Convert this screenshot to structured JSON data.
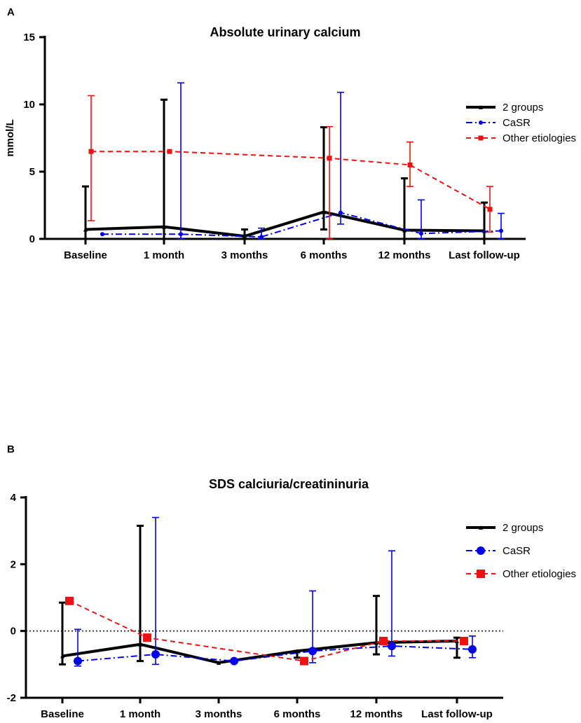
{
  "chart_data": [
    {
      "type": "line",
      "panel": "A",
      "title": "Absolute urinary calcium",
      "xlabel": "",
      "ylabel": "mmol/L",
      "ylim": [
        0,
        15
      ],
      "yticks": [
        0,
        5,
        10,
        15
      ],
      "categories": [
        "Baseline",
        "1 month",
        "3 months",
        "6 months",
        "12 months",
        "Last follow-up"
      ],
      "zero_reference_line": false,
      "legend_position": "right",
      "series": [
        {
          "name": "2 groups",
          "color": "#000000",
          "dash": "solid",
          "marker": "triangle",
          "values": [
            0.7,
            0.9,
            0.2,
            2.0,
            0.65,
            0.6
          ],
          "error_upper": [
            3.9,
            10.35,
            0.7,
            8.3,
            4.5,
            2.7
          ],
          "error_lower": [
            0.0,
            0.0,
            0.0,
            0.7,
            0.0,
            0.0
          ]
        },
        {
          "name": "CaSR",
          "color": "#0000ee",
          "dash": "dashdot",
          "marker": "circle",
          "values": [
            0.35,
            0.35,
            0.15,
            1.95,
            0.4,
            0.6
          ],
          "error_upper": [
            0.35,
            11.6,
            0.8,
            10.9,
            2.9,
            1.9
          ],
          "error_lower": [
            0.35,
            0.0,
            0.0,
            1.1,
            0.0,
            0.0
          ]
        },
        {
          "name": "Other etiologies",
          "color": "#ee1111",
          "dash": "dashed",
          "marker": "square",
          "values": [
            6.5,
            6.5,
            null,
            6.0,
            5.5,
            2.2
          ],
          "error_upper": [
            10.65,
            6.5,
            null,
            8.35,
            7.2,
            3.9
          ],
          "error_lower": [
            1.35,
            6.5,
            null,
            0.0,
            3.9,
            0.5
          ]
        }
      ]
    },
    {
      "type": "line",
      "panel": "B",
      "title": "SDS calciuria/creatininuria",
      "xlabel": "",
      "ylabel": "",
      "ylim": [
        -2,
        4
      ],
      "yticks": [
        -2,
        0,
        2,
        4
      ],
      "categories": [
        "Baseline",
        "1 month",
        "3 months",
        "6 months",
        "12 months",
        "Last follow-up"
      ],
      "zero_reference_line": true,
      "legend_position": "right",
      "series": [
        {
          "name": "2 groups",
          "color": "#000000",
          "dash": "solid",
          "marker": "triangle",
          "values": [
            -0.75,
            -0.4,
            -0.95,
            -0.6,
            -0.35,
            -0.3
          ],
          "error_upper": [
            0.85,
            3.15,
            -0.95,
            -0.6,
            1.05,
            -0.2
          ],
          "error_lower": [
            -1.0,
            -0.9,
            -0.95,
            -0.8,
            -0.7,
            -0.8
          ]
        },
        {
          "name": "CaSR",
          "color": "#0000ee",
          "dash": "dashdot",
          "marker": "circle",
          "values": [
            -0.9,
            -0.7,
            -0.9,
            -0.6,
            -0.45,
            -0.55
          ],
          "error_upper": [
            0.05,
            3.4,
            -0.9,
            1.2,
            2.4,
            -0.15
          ],
          "error_lower": [
            -1.05,
            -1.0,
            -0.9,
            -0.95,
            -0.75,
            -0.8
          ]
        },
        {
          "name": "Other etiologies",
          "color": "#ee1111",
          "dash": "dashed",
          "marker": "square",
          "values": [
            0.9,
            -0.2,
            null,
            -0.9,
            -0.3,
            -0.3
          ],
          "error_upper": [
            null,
            null,
            null,
            null,
            null,
            null
          ],
          "error_lower": [
            null,
            null,
            null,
            null,
            null,
            null
          ]
        }
      ]
    }
  ]
}
